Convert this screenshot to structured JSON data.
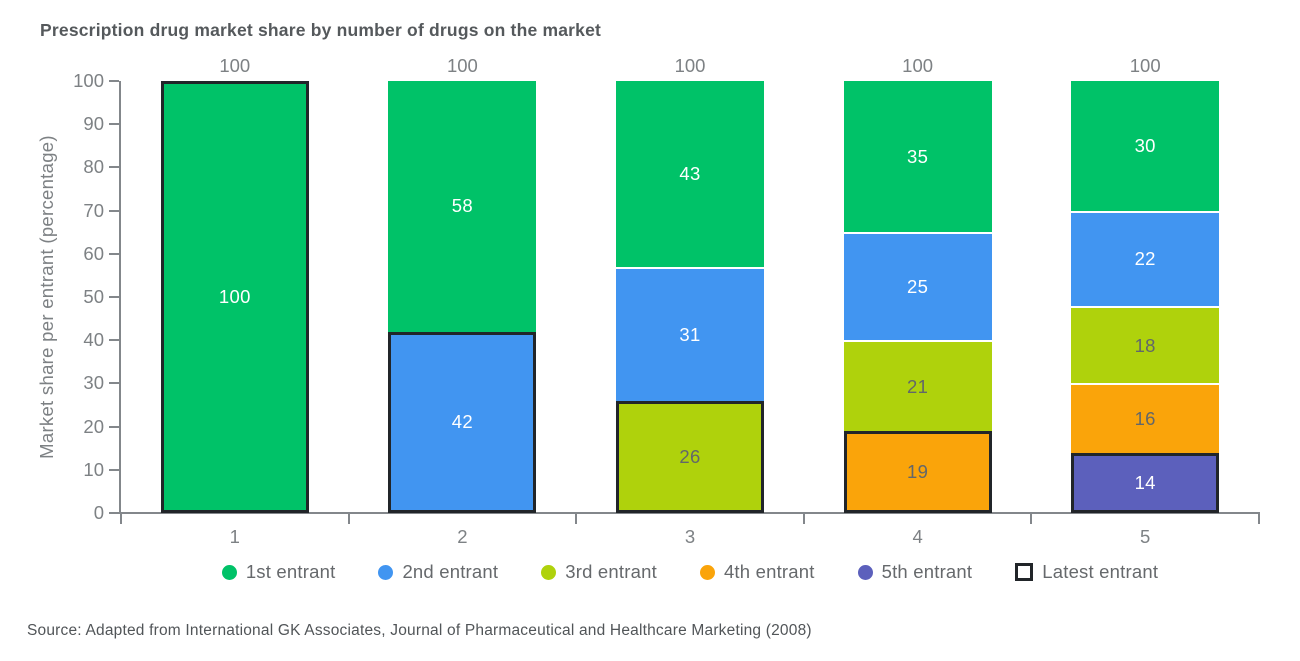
{
  "page": {
    "source": "Source: Adapted from International GK Associates, Journal of Pharmaceutical and Healthcare Marketing (2008)"
  },
  "chart_data": {
    "type": "bar",
    "stacked": true,
    "title": "Prescription drug market share by number of drugs on the market",
    "xlabel": "",
    "ylabel": "Market share per entrant (percentage)",
    "categories": [
      "1",
      "2",
      "3",
      "4",
      "5"
    ],
    "series": [
      {
        "name": "1st entrant",
        "color": "#00C268",
        "label_color": "#FFFFFF",
        "values": [
          100,
          58,
          43,
          35,
          30
        ]
      },
      {
        "name": "2nd entrant",
        "color": "#4195F1",
        "label_color": "#FFFFFF",
        "values": [
          null,
          42,
          31,
          25,
          22
        ]
      },
      {
        "name": "3rd entrant",
        "color": "#AFD20C",
        "label_color": "#62676A",
        "values": [
          null,
          null,
          26,
          21,
          18
        ]
      },
      {
        "name": "4th entrant",
        "color": "#FAA40A",
        "label_color": "#62676A",
        "values": [
          null,
          null,
          null,
          19,
          16
        ]
      },
      {
        "name": "5th entrant",
        "color": "#5C60BC",
        "label_color": "#FFFFFF",
        "values": [
          null,
          null,
          null,
          null,
          14
        ]
      }
    ],
    "totals": [
      "100",
      "100",
      "100",
      "100",
      "100"
    ],
    "latest_entrant_legend": "Latest entrant",
    "latest_entrant_rule": "bottom-most (newest) segment of each bar is outlined in black",
    "outline_color": "#212529",
    "separator_color": "#FFFFFF",
    "ylim": [
      0,
      100
    ],
    "ytick_step": 10,
    "grid": false,
    "legend_position": "bottom"
  }
}
